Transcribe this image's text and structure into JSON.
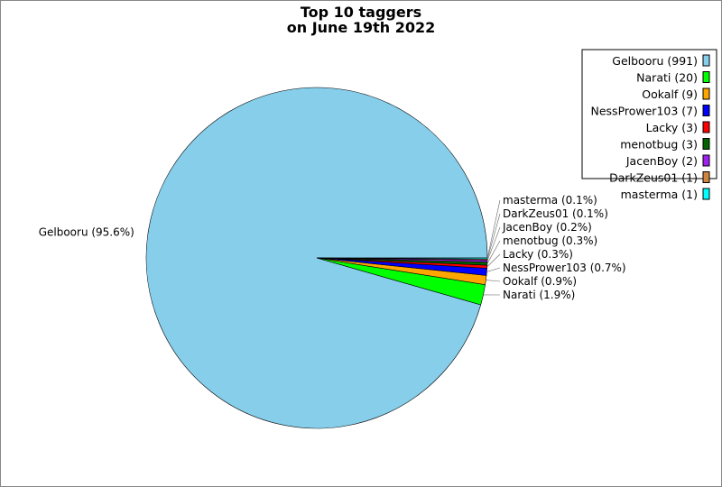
{
  "chart_data": {
    "type": "pie",
    "title": [
      "Top 10 taggers",
      "on June 19th 2022"
    ],
    "legend_placement": "top-right",
    "slices": [
      {
        "name": "Gelbooru",
        "count": 991,
        "percent": 95.6,
        "color": "#87ceeb",
        "legend": "Gelbooru (991)",
        "label": "Gelbooru (95.6%)"
      },
      {
        "name": "Narati",
        "count": 20,
        "percent": 1.9,
        "color": "#00ff00",
        "legend": "Narati (20)",
        "label": "Narati (1.9%)"
      },
      {
        "name": "Ookalf",
        "count": 9,
        "percent": 0.9,
        "color": "#ffa500",
        "legend": "Ookalf (9)",
        "label": "Ookalf (0.9%)"
      },
      {
        "name": "NessPrower103",
        "count": 7,
        "percent": 0.7,
        "color": "#0000ff",
        "legend": "NessPrower103 (7)",
        "label": "NessPrower103 (0.7%)"
      },
      {
        "name": "Lacky",
        "count": 3,
        "percent": 0.3,
        "color": "#ff0000",
        "legend": "Lacky (3)",
        "label": "Lacky (0.3%)"
      },
      {
        "name": "menotbug",
        "count": 3,
        "percent": 0.3,
        "color": "#006400",
        "legend": "menotbug (3)",
        "label": "menotbug (0.3%)"
      },
      {
        "name": "JacenBoy",
        "count": 2,
        "percent": 0.2,
        "color": "#a020f0",
        "legend": "JacenBoy (2)",
        "label": "JacenBoy (0.2%)"
      },
      {
        "name": "DarkZeus01",
        "count": 1,
        "percent": 0.1,
        "color": "#cd853f",
        "legend": "DarkZeus01 (1)",
        "label": "DarkZeus01 (0.1%)"
      },
      {
        "name": "masterma",
        "count": 1,
        "percent": 0.1,
        "color": "#00ffff",
        "legend": "masterma (1)",
        "label": "masterma (0.1%)"
      }
    ]
  }
}
